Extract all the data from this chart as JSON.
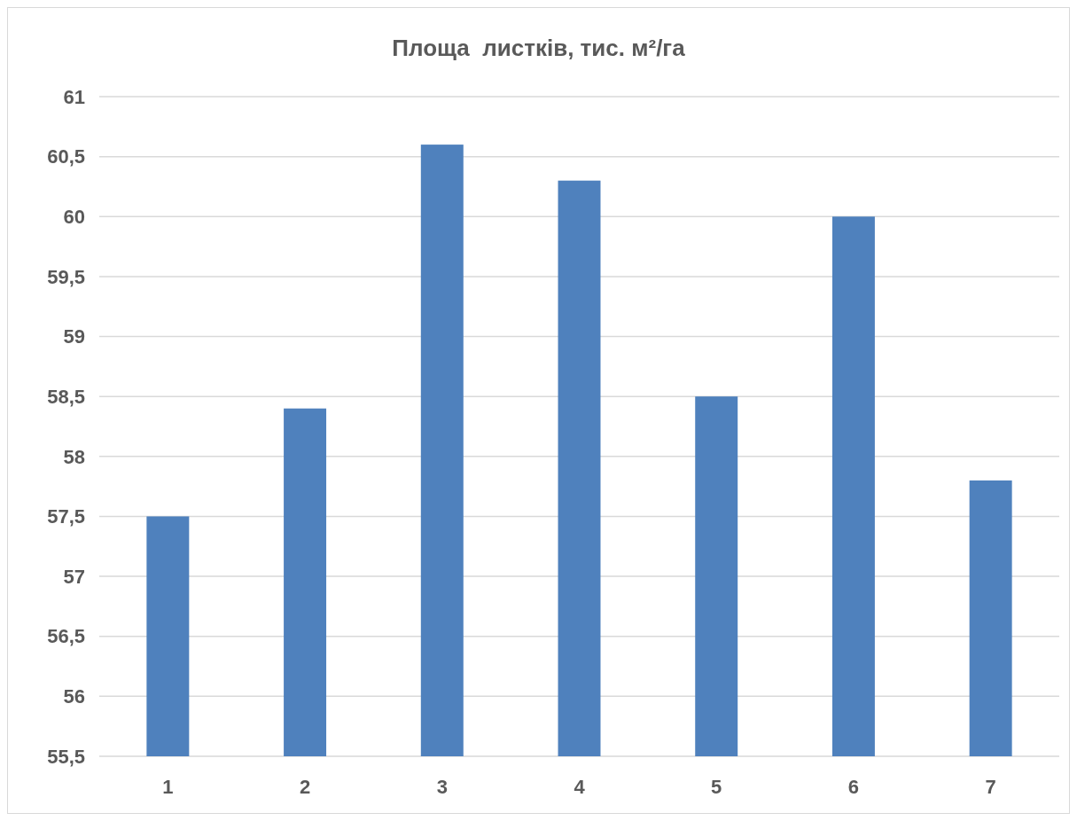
{
  "chart_data": {
    "type": "bar",
    "title": "Площа  листків, тис. м²/га",
    "categories": [
      "1",
      "2",
      "3",
      "4",
      "5",
      "6",
      "7"
    ],
    "values": [
      57.5,
      58.4,
      60.6,
      60.3,
      58.5,
      60,
      57.8
    ],
    "color": "#4f81bd",
    "ylim": [
      55.5,
      61
    ],
    "yticks": [
      {
        "value": 55.5,
        "label": "55,5"
      },
      56,
      {
        "value": 56.5,
        "label": "56,5"
      },
      57,
      {
        "value": 57.5,
        "label": "57,5"
      },
      58,
      {
        "value": 58.5,
        "label": "58,5"
      },
      59,
      {
        "value": 59.5,
        "label": "59,5"
      },
      60,
      {
        "value": 60.5,
        "label": "60,5"
      },
      61
    ],
    "grid": "y"
  }
}
